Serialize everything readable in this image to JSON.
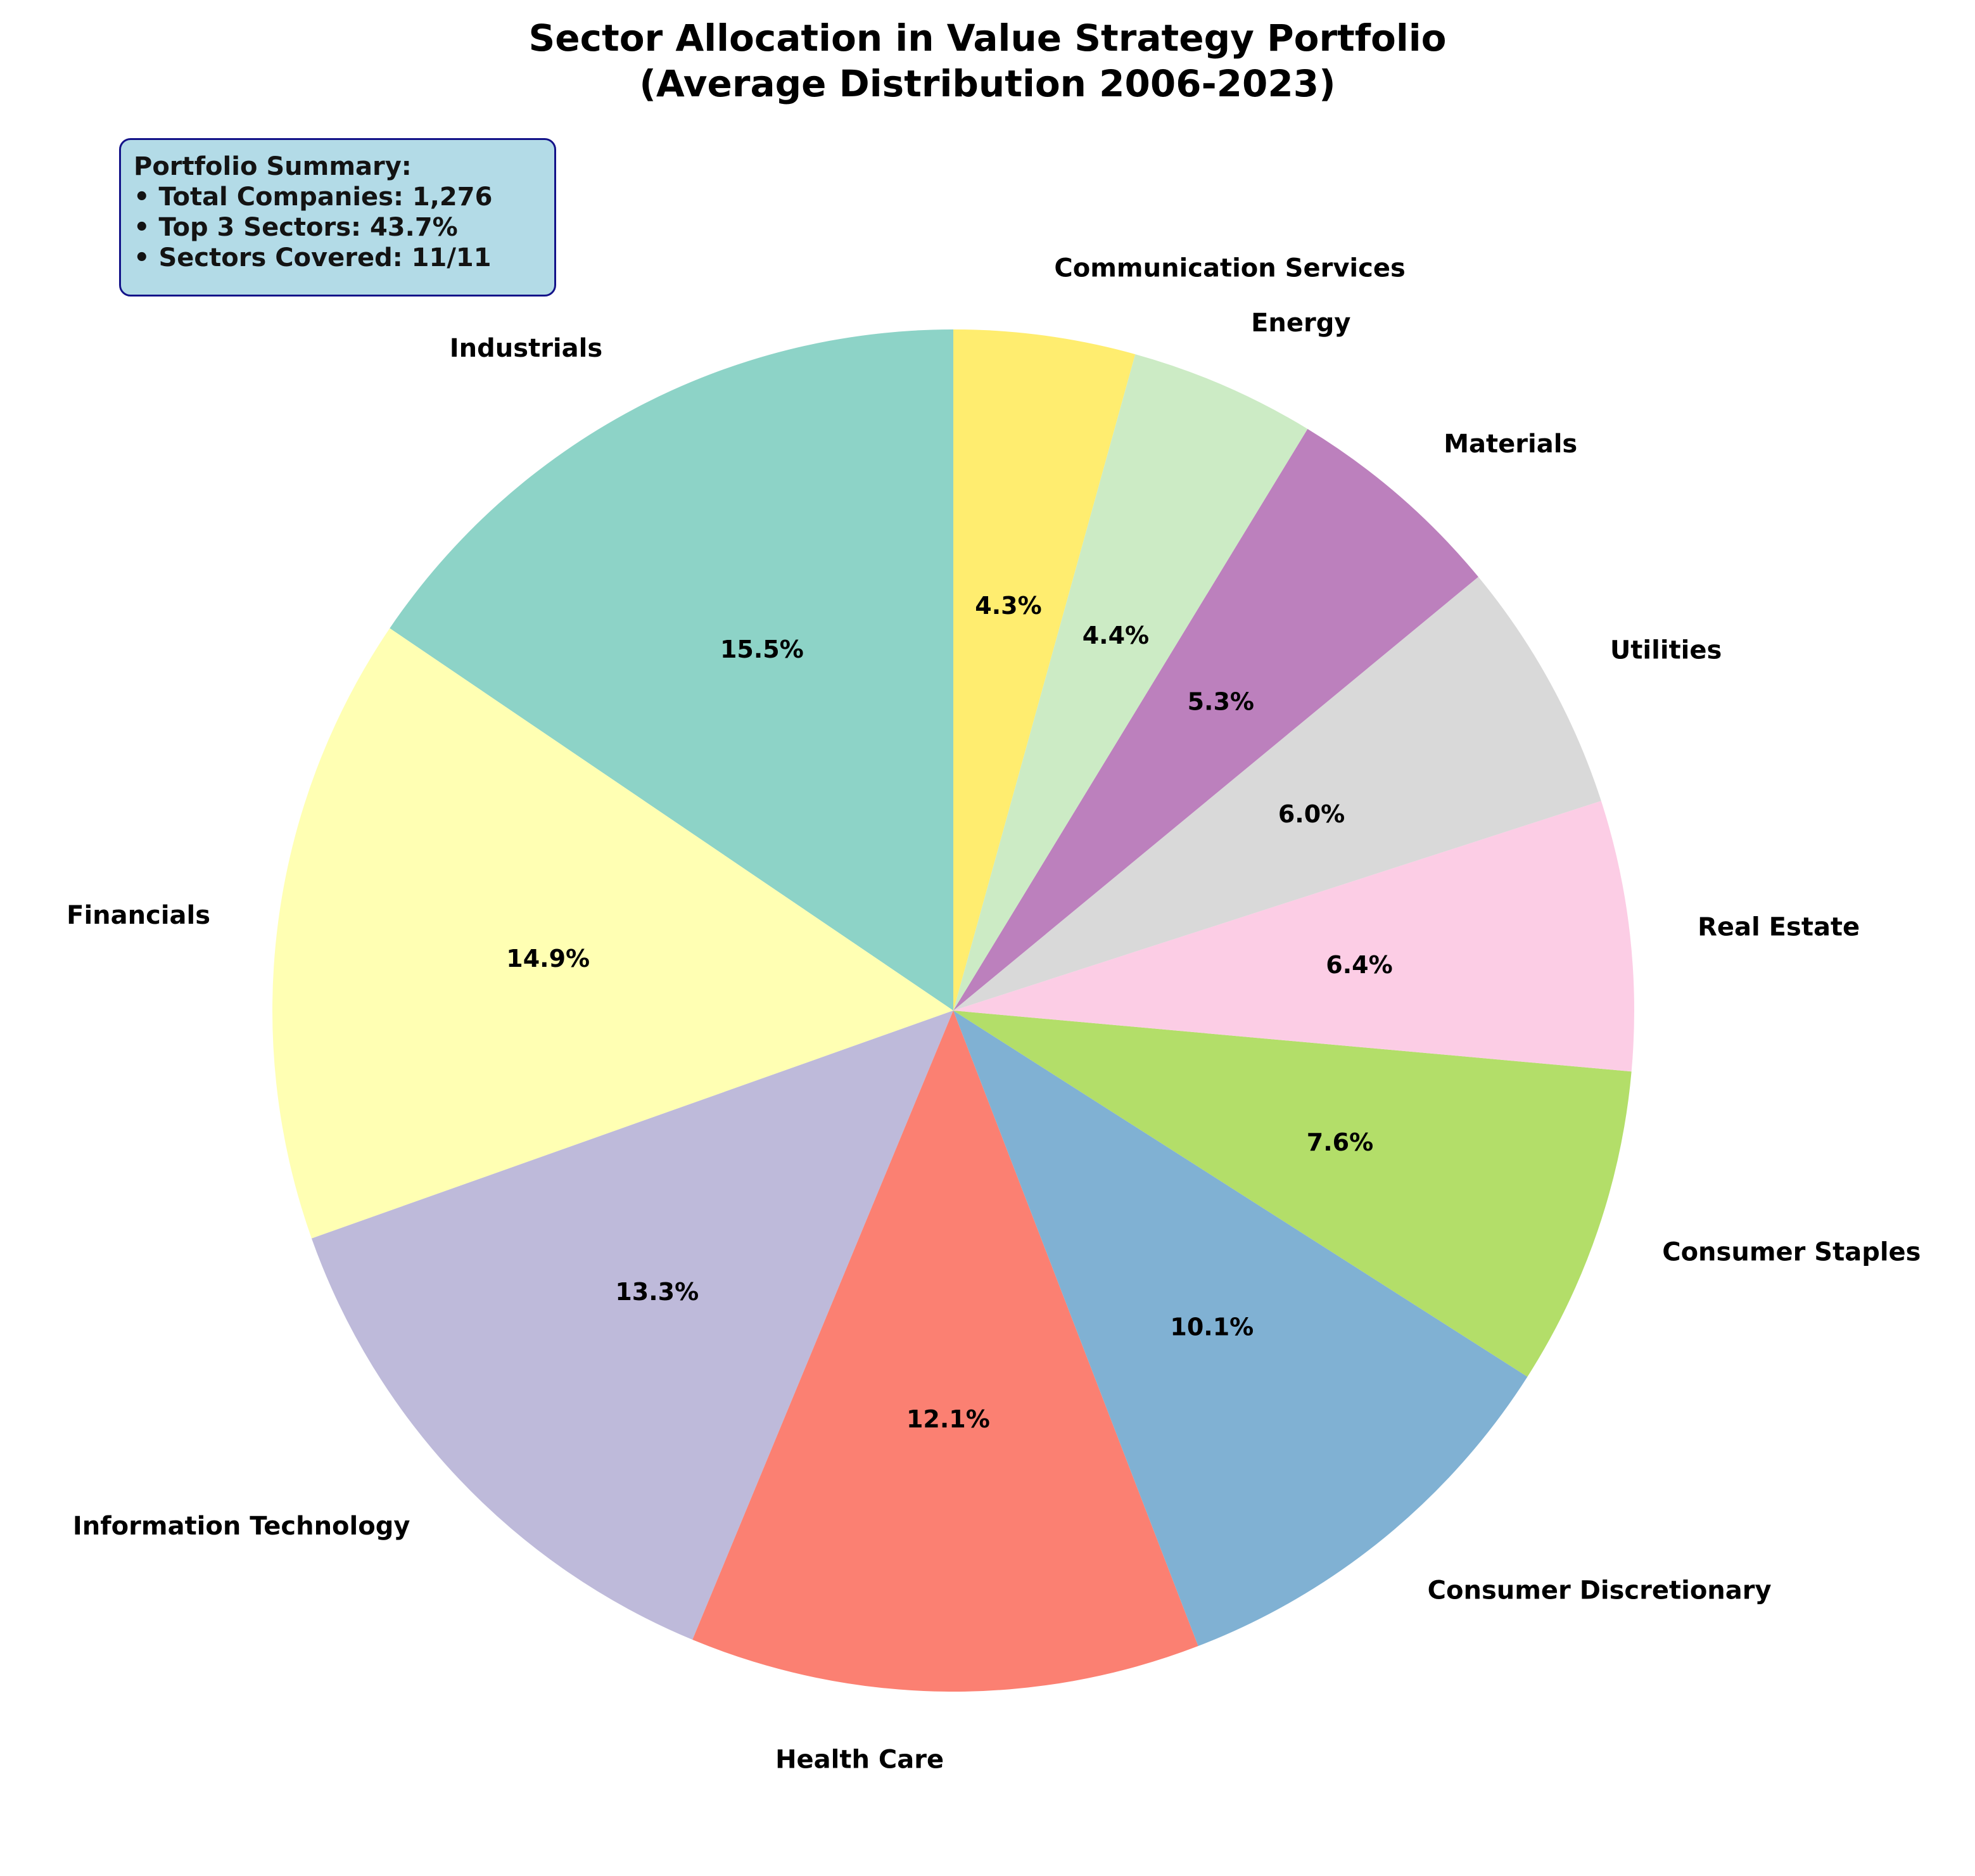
{
  "chart_data": {
    "type": "pie",
    "title_lines": [
      "Sector Allocation in Value Strategy Portfolio",
      "(Average Distribution 2006-2023)"
    ],
    "categories": [
      "Industrials",
      "Financials",
      "Information Technology",
      "Health Care",
      "Consumer Discretionary",
      "Consumer Staples",
      "Real Estate",
      "Utilities",
      "Materials",
      "Energy",
      "Communication Services"
    ],
    "values": [
      15.5,
      14.9,
      13.3,
      12.1,
      10.1,
      7.6,
      6.4,
      6.0,
      5.3,
      4.4,
      4.3
    ],
    "value_labels": [
      "15.5%",
      "14.9%",
      "13.3%",
      "12.1%",
      "10.1%",
      "7.6%",
      "6.4%",
      "6.0%",
      "5.3%",
      "4.4%",
      "4.3%"
    ],
    "colors": [
      "#8dd3c7",
      "#ffffb3",
      "#bebada",
      "#fb8072",
      "#80b1d3",
      "#b3de69",
      "#fccde5",
      "#d9d9d9",
      "#bc80bd",
      "#ccebc5",
      "#ffed6f"
    ],
    "start_angle": "top",
    "direction": "counterclockwise"
  },
  "summary": {
    "heading": "Portfolio Summary:",
    "lines": [
      "• Total Companies: 1,276",
      "• Top 3 Sectors: 43.7%",
      "• Sectors Covered: 11/11"
    ]
  }
}
